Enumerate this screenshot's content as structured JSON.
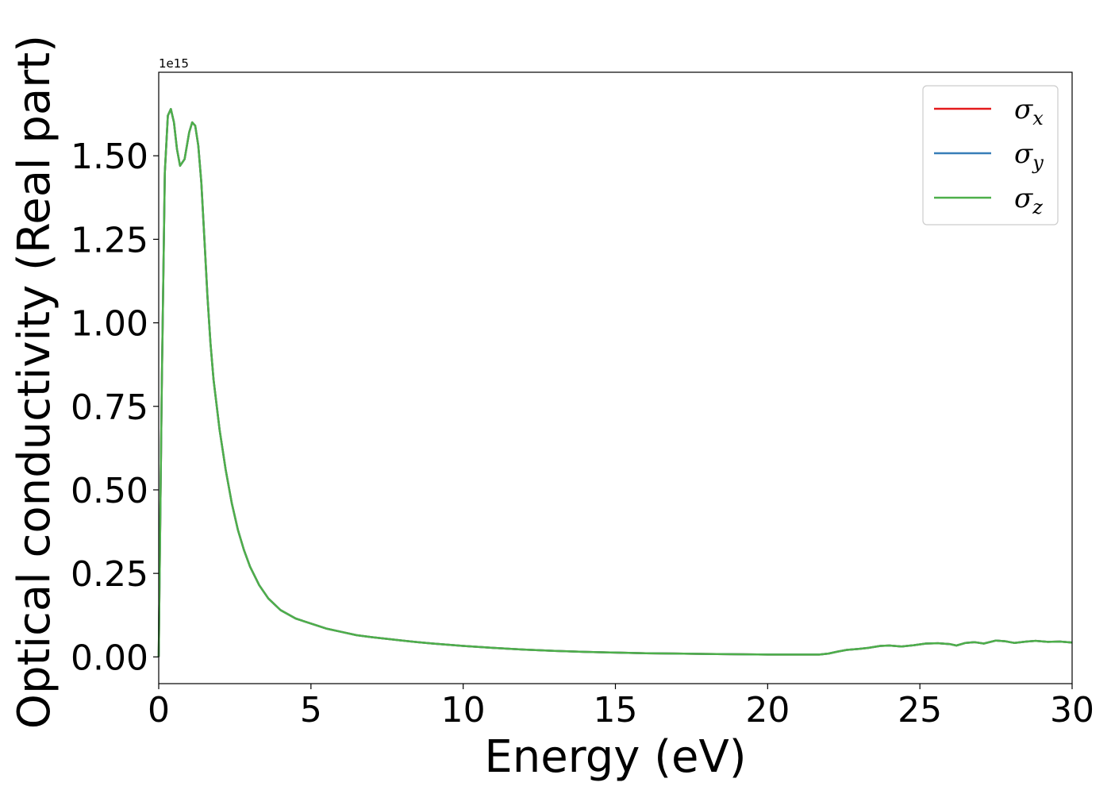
{
  "chart_data": {
    "type": "line",
    "title": "",
    "xlabel": "Energy (eV)",
    "ylabel": "Optical conductivity (Real part)",
    "y_offset_label": "1e15",
    "xlim": [
      0,
      30
    ],
    "ylim": [
      -0.08,
      1.75
    ],
    "x_ticks": [
      0,
      5,
      10,
      15,
      20,
      25,
      30
    ],
    "x_tick_labels": [
      "0",
      "5",
      "10",
      "15",
      "20",
      "25",
      "30"
    ],
    "y_ticks": [
      0.0,
      0.25,
      0.5,
      0.75,
      1.0,
      1.25,
      1.5
    ],
    "y_tick_labels": [
      "0.00",
      "0.25",
      "0.50",
      "0.75",
      "1.00",
      "1.25",
      "1.50"
    ],
    "grid": false,
    "legend_position": "top-right",
    "x": [
      0,
      0.1,
      0.2,
      0.3,
      0.4,
      0.5,
      0.6,
      0.7,
      0.85,
      1.0,
      1.1,
      1.2,
      1.3,
      1.4,
      1.5,
      1.6,
      1.7,
      1.8,
      2.0,
      2.2,
      2.4,
      2.6,
      2.8,
      3.0,
      3.3,
      3.6,
      4.0,
      4.5,
      5.0,
      5.5,
      6.0,
      6.5,
      7.0,
      7.5,
      8.0,
      8.5,
      9.0,
      10.0,
      11.0,
      12.0,
      13.0,
      14.0,
      15.0,
      16.0,
      17.0,
      18.0,
      19.0,
      20.0,
      21.0,
      21.7,
      22.0,
      22.3,
      22.6,
      23.0,
      23.3,
      23.7,
      24.0,
      24.4,
      24.8,
      25.2,
      25.6,
      26.0,
      26.2,
      26.5,
      26.8,
      27.1,
      27.5,
      27.8,
      28.1,
      28.5,
      28.8,
      29.2,
      29.6,
      30.0
    ],
    "series": [
      {
        "name": "σx",
        "label_base": "σ",
        "label_sub": "x",
        "color": "#e41a1c",
        "values": [
          0.0,
          0.8,
          1.45,
          1.62,
          1.64,
          1.6,
          1.52,
          1.47,
          1.49,
          1.57,
          1.6,
          1.59,
          1.53,
          1.42,
          1.25,
          1.08,
          0.94,
          0.83,
          0.68,
          0.56,
          0.46,
          0.38,
          0.32,
          0.27,
          0.215,
          0.175,
          0.14,
          0.115,
          0.1,
          0.085,
          0.075,
          0.065,
          0.059,
          0.054,
          0.049,
          0.044,
          0.04,
          0.033,
          0.027,
          0.022,
          0.018,
          0.015,
          0.013,
          0.011,
          0.01,
          0.009,
          0.008,
          0.007,
          0.007,
          0.007,
          0.01,
          0.016,
          0.021,
          0.024,
          0.027,
          0.033,
          0.034,
          0.031,
          0.035,
          0.04,
          0.041,
          0.038,
          0.034,
          0.042,
          0.044,
          0.04,
          0.049,
          0.047,
          0.042,
          0.046,
          0.048,
          0.045,
          0.046,
          0.043
        ]
      },
      {
        "name": "σy",
        "label_base": "σ",
        "label_sub": "y",
        "color": "#377eb8",
        "values": [
          0.0,
          0.8,
          1.45,
          1.62,
          1.64,
          1.6,
          1.52,
          1.47,
          1.49,
          1.57,
          1.6,
          1.59,
          1.53,
          1.42,
          1.25,
          1.08,
          0.94,
          0.83,
          0.68,
          0.56,
          0.46,
          0.38,
          0.32,
          0.27,
          0.215,
          0.175,
          0.14,
          0.115,
          0.1,
          0.085,
          0.075,
          0.065,
          0.059,
          0.054,
          0.049,
          0.044,
          0.04,
          0.033,
          0.027,
          0.022,
          0.018,
          0.015,
          0.013,
          0.011,
          0.01,
          0.009,
          0.008,
          0.007,
          0.007,
          0.007,
          0.01,
          0.016,
          0.021,
          0.024,
          0.027,
          0.033,
          0.034,
          0.031,
          0.035,
          0.04,
          0.041,
          0.038,
          0.034,
          0.042,
          0.044,
          0.04,
          0.049,
          0.047,
          0.042,
          0.046,
          0.048,
          0.045,
          0.046,
          0.043
        ]
      },
      {
        "name": "σz",
        "label_base": "σ",
        "label_sub": "z",
        "color": "#4daf4a",
        "values": [
          0.0,
          0.8,
          1.45,
          1.62,
          1.64,
          1.6,
          1.52,
          1.47,
          1.49,
          1.57,
          1.6,
          1.59,
          1.53,
          1.42,
          1.25,
          1.08,
          0.94,
          0.83,
          0.68,
          0.56,
          0.46,
          0.38,
          0.32,
          0.27,
          0.215,
          0.175,
          0.14,
          0.115,
          0.1,
          0.085,
          0.075,
          0.065,
          0.059,
          0.054,
          0.049,
          0.044,
          0.04,
          0.033,
          0.027,
          0.022,
          0.018,
          0.015,
          0.013,
          0.011,
          0.01,
          0.009,
          0.008,
          0.007,
          0.007,
          0.007,
          0.01,
          0.016,
          0.021,
          0.024,
          0.027,
          0.033,
          0.034,
          0.031,
          0.035,
          0.04,
          0.041,
          0.038,
          0.034,
          0.042,
          0.044,
          0.04,
          0.049,
          0.047,
          0.042,
          0.046,
          0.048,
          0.045,
          0.046,
          0.043
        ]
      }
    ]
  }
}
